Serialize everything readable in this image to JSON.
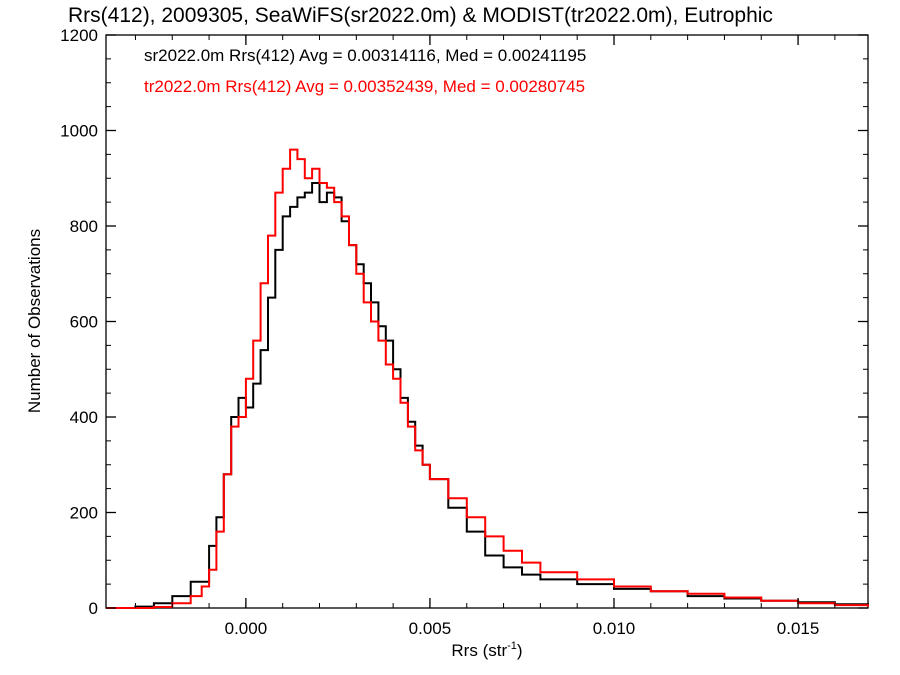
{
  "chart_data": {
    "type": "line",
    "title": "Rrs(412), 2009305, SeaWiFS(sr2022.0m) & MODIST(tr2022.0m), Eutrophic",
    "xlabel": "Rrs (str",
    "xlabel_sup": "-1",
    "xlabel_end": ")",
    "ylabel": "Number of Observations",
    "xlim": [
      -0.0038,
      0.0169
    ],
    "ylim": [
      0,
      1200
    ],
    "xticks": [
      0.0,
      0.005,
      0.01,
      0.015
    ],
    "xtick_labels": [
      "0.000",
      "0.005",
      "0.010",
      "0.015"
    ],
    "yticks": [
      0,
      200,
      400,
      600,
      800,
      1000,
      1200
    ],
    "ytick_labels": [
      "0",
      "200",
      "400",
      "600",
      "800",
      "1000",
      "1200"
    ],
    "legend": [
      {
        "text": "sr2022.0m Rrs(412) Avg = 0.00314116, Med = 0.00241195",
        "color": "#000000"
      },
      {
        "text": "tr2022.0m Rrs(412) Avg = 0.00352439, Med = 0.00280745",
        "color": "#ff0000"
      }
    ],
    "series": [
      {
        "color": "#000000",
        "x": [
          -0.0038,
          -0.003,
          -0.0025,
          -0.002,
          -0.0015,
          -0.001,
          -0.0008,
          -0.0006,
          -0.0004,
          -0.0002,
          0.0,
          0.0002,
          0.0004,
          0.0006,
          0.0008,
          0.001,
          0.0012,
          0.0014,
          0.0016,
          0.0018,
          0.002,
          0.0022,
          0.0024,
          0.0026,
          0.0028,
          0.003,
          0.0032,
          0.0034,
          0.0036,
          0.0038,
          0.004,
          0.0042,
          0.0044,
          0.0046,
          0.0048,
          0.005,
          0.0055,
          0.006,
          0.0065,
          0.007,
          0.0075,
          0.008,
          0.009,
          0.01,
          0.011,
          0.012,
          0.013,
          0.014,
          0.015,
          0.016,
          0.0169
        ],
        "y": [
          0,
          3,
          10,
          25,
          55,
          130,
          190,
          280,
          400,
          440,
          420,
          470,
          540,
          650,
          750,
          820,
          840,
          860,
          870,
          890,
          850,
          870,
          860,
          810,
          760,
          720,
          680,
          640,
          590,
          560,
          500,
          440,
          390,
          340,
          300,
          270,
          210,
          160,
          110,
          85,
          70,
          60,
          50,
          40,
          35,
          25,
          20,
          15,
          12,
          8,
          5
        ]
      },
      {
        "color": "#ff0000",
        "x": [
          -0.0038,
          -0.003,
          -0.0025,
          -0.002,
          -0.0015,
          -0.0012,
          -0.001,
          -0.0008,
          -0.0006,
          -0.0004,
          -0.0002,
          0.0,
          0.0002,
          0.0004,
          0.0006,
          0.0008,
          0.001,
          0.0012,
          0.0014,
          0.0016,
          0.0018,
          0.002,
          0.0022,
          0.0024,
          0.0026,
          0.0028,
          0.003,
          0.0032,
          0.0034,
          0.0036,
          0.0038,
          0.004,
          0.0042,
          0.0044,
          0.0046,
          0.0048,
          0.005,
          0.0055,
          0.006,
          0.0065,
          0.007,
          0.0075,
          0.008,
          0.009,
          0.01,
          0.011,
          0.012,
          0.013,
          0.014,
          0.015,
          0.016,
          0.0169
        ],
        "y": [
          0,
          0,
          2,
          10,
          25,
          45,
          80,
          160,
          280,
          380,
          400,
          480,
          560,
          680,
          780,
          870,
          920,
          960,
          940,
          900,
          920,
          890,
          880,
          850,
          820,
          760,
          700,
          640,
          600,
          560,
          510,
          480,
          430,
          380,
          330,
          300,
          270,
          230,
          190,
          150,
          120,
          95,
          75,
          60,
          45,
          35,
          30,
          22,
          15,
          10,
          6,
          3
        ]
      }
    ],
    "grid": false,
    "legend_position": "top-left"
  }
}
